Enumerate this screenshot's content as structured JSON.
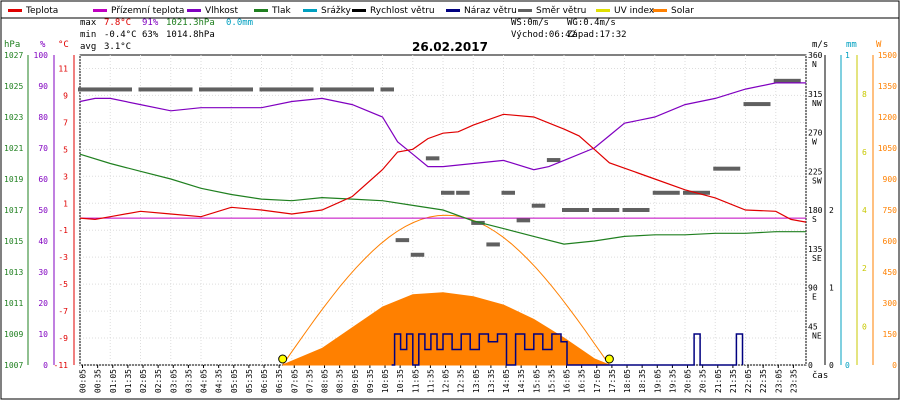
{
  "chart_data": {
    "type": "line",
    "title": "26.02.2017",
    "legend": [
      {
        "name": "Teplota",
        "color": "#e00000"
      },
      {
        "name": "Přízemní teplota",
        "color": "#c000c0"
      },
      {
        "name": "Vlhkost",
        "color": "#8000c0"
      },
      {
        "name": "Tlak",
        "color": "#208020"
      },
      {
        "name": "Srážky",
        "color": "#00a0c0"
      },
      {
        "name": "Rychlost větru",
        "color": "#000000"
      },
      {
        "name": "Náraz větru",
        "color": "#000080"
      },
      {
        "name": "Směr větru",
        "color": "#606060"
      },
      {
        "name": "UV index",
        "color": "#e0e000"
      },
      {
        "name": "Solar",
        "color": "#ff8000"
      }
    ],
    "stats": {
      "max_label": "max",
      "max_temp": "7.8°C",
      "max_hum": "91%",
      "max_press": "1021.3hPa",
      "max_rain": "0.0mm",
      "min_label": "min",
      "min_temp": "-0.4°C",
      "min_hum": "63%",
      "min_press": "1014.8hPa",
      "avg_label": "avg",
      "avg_temp": "3.1°C",
      "ws": "WS:0m/s",
      "wg": "WG:0.4m/s",
      "sunrise": "Východ:06:42",
      "sunset": "Západ:17:32"
    },
    "axes": {
      "hpa_title": "hPa",
      "pct_title": "%",
      "temp_title": "°C",
      "ms_title": "m/s",
      "mm_title": "mm",
      "w_title": "W",
      "x_title": "čas",
      "hpa_ticks": [
        "1027",
        "1025",
        "1023",
        "1021",
        "1019",
        "1017",
        "1015",
        "1013",
        "1011",
        "1009",
        "1007"
      ],
      "pct_ticks": [
        "100",
        "90",
        "80",
        "70",
        "60",
        "50",
        "40",
        "30",
        "20",
        "10",
        "0"
      ],
      "temp_ticks": [
        "11",
        "9",
        "7",
        "5",
        "3",
        "1",
        "-1",
        "-3",
        "-5",
        "-7",
        "-9",
        "-11"
      ],
      "dir_ticks": [
        {
          "deg": "360",
          "card": "N"
        },
        {
          "deg": "315",
          "card": "NW"
        },
        {
          "deg": "270",
          "card": "W"
        },
        {
          "deg": "225",
          "card": "SW"
        },
        {
          "deg": "180",
          "card": "S"
        },
        {
          "deg": "135",
          "card": "SE"
        },
        {
          "deg": "90",
          "card": "E"
        },
        {
          "deg": "45",
          "card": "NE"
        },
        {
          "deg": "0",
          "card": ""
        }
      ],
      "ms_ticks": [
        {
          "v": "2",
          "t": 180
        },
        {
          "v": "1",
          "t": 90
        },
        {
          "v": "0",
          "t": 0
        }
      ],
      "mm_ticks": [
        {
          "v": "1",
          "t": 360
        },
        {
          "v": "0",
          "t": 0
        }
      ],
      "uv_ticks": [
        {
          "v": "8",
          "t": 315
        },
        {
          "v": "6",
          "t": 247.5
        },
        {
          "v": "4",
          "t": 180
        },
        {
          "v": "2",
          "t": 112.5
        },
        {
          "v": "0",
          "t": 45
        }
      ],
      "w_ticks": [
        "1500",
        "1350",
        "1200",
        "1050",
        "900",
        "750",
        "600",
        "450",
        "300",
        "150",
        "0"
      ],
      "x_ticks": [
        "00:05",
        "00:35",
        "01:05",
        "01:35",
        "02:05",
        "02:35",
        "03:05",
        "03:35",
        "04:05",
        "04:35",
        "05:05",
        "05:35",
        "06:05",
        "06:35",
        "07:05",
        "07:35",
        "08:05",
        "08:35",
        "09:05",
        "09:35",
        "10:05",
        "10:35",
        "11:05",
        "11:35",
        "12:05",
        "12:35",
        "13:05",
        "13:35",
        "14:05",
        "14:35",
        "15:05",
        "15:35",
        "16:05",
        "16:35",
        "17:05",
        "17:35",
        "18:05",
        "18:35",
        "19:05",
        "19:35",
        "20:05",
        "20:35",
        "21:05",
        "21:35",
        "22:05",
        "22:35",
        "23:05",
        "23:35"
      ]
    },
    "series": [
      {
        "name": "Teplota",
        "unit": "°C",
        "times": [
          0,
          0.5,
          1,
          2,
          3,
          4,
          5,
          6,
          7,
          8,
          9,
          10,
          10.5,
          11,
          11.5,
          12,
          12.5,
          13,
          14,
          15,
          16,
          16.5,
          17,
          17.5,
          18,
          19,
          20,
          21,
          22,
          23,
          23.5,
          24
        ],
        "values": [
          -0.1,
          -0.2,
          0,
          0.4,
          0.2,
          0,
          0.7,
          0.5,
          0.2,
          0.5,
          1.5,
          3.5,
          4.8,
          5.0,
          5.8,
          6.2,
          6.3,
          6.8,
          7.6,
          7.4,
          6.5,
          6.0,
          5.0,
          4.0,
          3.6,
          2.8,
          2.0,
          1.4,
          0.5,
          0.4,
          -0.2,
          -0.4
        ]
      },
      {
        "name": "Přízemní teplota",
        "unit": "°C",
        "times": [
          0,
          24
        ],
        "values": [
          -0.1,
          -0.1
        ]
      },
      {
        "name": "Vlhkost",
        "unit": "%",
        "times": [
          0,
          0.5,
          1,
          2,
          3,
          4,
          5,
          6,
          7,
          8,
          9,
          10,
          10.5,
          11,
          11.5,
          12,
          13,
          14,
          15,
          15.5,
          16,
          17,
          17.5,
          18,
          19,
          20,
          21,
          22,
          23,
          24
        ],
        "values": [
          85,
          86,
          86,
          84,
          82,
          83,
          83,
          83,
          85,
          86,
          84,
          80,
          72,
          68,
          64,
          64,
          65,
          66,
          63,
          64,
          66,
          70,
          74,
          78,
          80,
          84,
          86,
          89,
          91,
          91
        ]
      },
      {
        "name": "Tlak",
        "unit": "hPa",
        "times": [
          0,
          1,
          2,
          3,
          4,
          5,
          6,
          7,
          8,
          9,
          10,
          11,
          12,
          13,
          14,
          15,
          16,
          17,
          18,
          19,
          20,
          21,
          22,
          23,
          24
        ],
        "values": [
          1020.6,
          1020.0,
          1019.5,
          1019.0,
          1018.4,
          1018.0,
          1017.7,
          1017.6,
          1017.8,
          1017.7,
          1017.6,
          1017.3,
          1017.0,
          1016.3,
          1015.8,
          1015.3,
          1014.8,
          1015.0,
          1015.3,
          1015.4,
          1015.4,
          1015.5,
          1015.5,
          1015.6,
          1015.6
        ]
      },
      {
        "name": "Srážky",
        "unit": "mm",
        "times": [
          0,
          24
        ],
        "values": [
          0,
          0
        ]
      },
      {
        "name": "Rychlost větru",
        "unit": "m/s",
        "times": [
          0,
          24
        ],
        "values": [
          0,
          0
        ]
      },
      {
        "name": "Náraz větru",
        "unit": "m/s",
        "times": [
          10.3,
          10.4,
          10.6,
          10.8,
          11.0,
          11.2,
          11.4,
          11.6,
          11.8,
          12.0,
          12.3,
          12.6,
          12.9,
          13.2,
          13.5,
          13.8,
          14.1,
          14.4,
          14.7,
          15.0,
          15.3,
          15.6,
          15.9,
          16.1,
          20.3,
          20.5,
          21.7,
          21.9
        ],
        "values": [
          0,
          0.4,
          0.2,
          0.4,
          0,
          0.4,
          0.2,
          0.4,
          0.2,
          0.4,
          0.2,
          0.4,
          0.2,
          0.4,
          0.3,
          0.4,
          0,
          0.4,
          0.2,
          0.4,
          0.2,
          0.4,
          0.3,
          0,
          0.4,
          0,
          0.4,
          0
        ]
      },
      {
        "name": "Směr větru",
        "unit": "°",
        "times": [
          0,
          2,
          4,
          6,
          8,
          10,
          10.5,
          11,
          11.5,
          12,
          12.5,
          13,
          13.5,
          14,
          14.5,
          15,
          15.5,
          16,
          17,
          18,
          19,
          20,
          21,
          22,
          23
        ],
        "values": [
          320,
          320,
          320,
          320,
          320,
          320,
          145,
          128,
          240,
          200,
          200,
          165,
          140,
          200,
          168,
          185,
          238,
          180,
          180,
          180,
          200,
          200,
          228,
          303,
          330
        ]
      },
      {
        "name": "UV index",
        "unit": "",
        "times": [
          6.7,
          17.5
        ],
        "values": [
          0,
          0
        ]
      },
      {
        "name": "Solar",
        "unit": "W",
        "times": [
          6.7,
          8,
          9,
          10,
          11,
          12,
          13,
          14,
          15,
          16,
          17,
          17.5
        ],
        "values": [
          0,
          80,
          180,
          280,
          340,
          350,
          330,
          290,
          220,
          130,
          30,
          0
        ]
      }
    ],
    "x_range": [
      0,
      24
    ],
    "ylim_temp": [
      -11,
      12
    ],
    "ylim_pct": [
      0,
      100
    ],
    "ylim_hpa": [
      1007,
      1027
    ],
    "ylim_dir": [
      0,
      360
    ],
    "ylim_solar": [
      0,
      1500
    ]
  }
}
